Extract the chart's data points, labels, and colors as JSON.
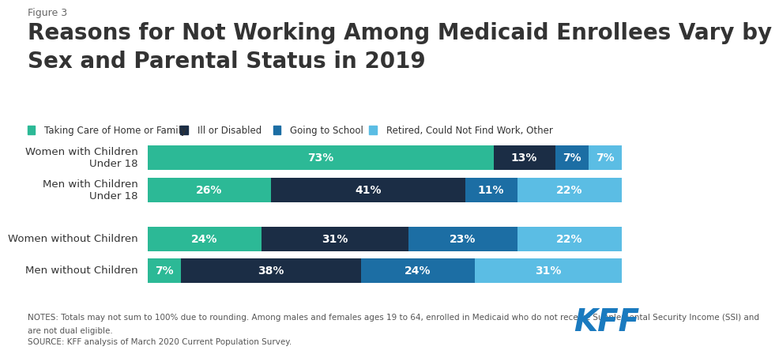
{
  "figure_label": "Figure 3",
  "title_line1": "Reasons for Not Working Among Medicaid Enrollees Vary by",
  "title_line2": "Sex and Parental Status in 2019",
  "categories": [
    "Women with Children\nUnder 18",
    "Men with Children\nUnder 18",
    "Women without Children",
    "Men without Children"
  ],
  "series": [
    {
      "label": "Taking Care of Home or Family",
      "color": "#2cb996",
      "values": [
        73,
        26,
        24,
        7
      ]
    },
    {
      "label": "Ill or Disabled",
      "color": "#1b2d45",
      "values": [
        13,
        41,
        31,
        38
      ]
    },
    {
      "label": "Going to School",
      "color": "#1c6ea4",
      "values": [
        7,
        11,
        23,
        24
      ]
    },
    {
      "label": "Retired, Could Not Find Work, Other",
      "color": "#5bbde4",
      "values": [
        7,
        22,
        22,
        31
      ]
    }
  ],
  "note_line1": "NOTES: Totals may not sum to 100% due to rounding. Among males and females ages 19 to 64, enrolled in Medicaid who do not receive Supplemental Security Income (SSI) and",
  "note_line2": "are not dual eligible.",
  "note_line3": "SOURCE: KFF analysis of March 2020 Current Population Survey.",
  "background_color": "#ffffff",
  "text_color": "#333333",
  "bar_label_fontsize": 10,
  "note_fontsize": 7.5,
  "kff_color": "#1a7abf"
}
